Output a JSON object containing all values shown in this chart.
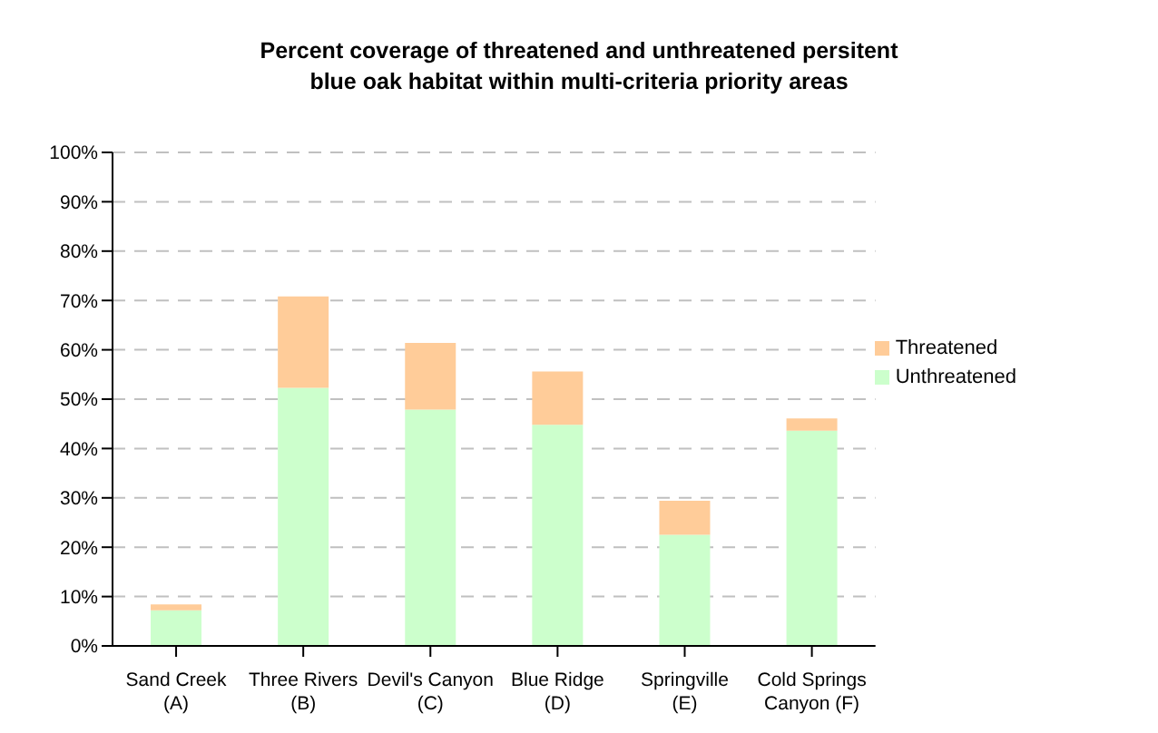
{
  "chart_data": {
    "type": "bar",
    "title": "Percent coverage of threatened and unthreatened persitent\nblue oak habitat within multi-criteria priority areas",
    "categories": [
      "Sand Creek\n(A)",
      "Three Rivers\n(B)",
      "Devil's Canyon\n(C)",
      "Blue Ridge\n(D)",
      "Springville\n(E)",
      "Cold Springs\nCanyon (F)"
    ],
    "stacked": true,
    "series": [
      {
        "name": "Unthreatened",
        "color": "#ccffcc",
        "values": [
          7.2,
          52.3,
          47.9,
          44.8,
          22.5,
          43.6
        ]
      },
      {
        "name": "Threatened",
        "color": "#ffcc99",
        "values": [
          1.2,
          18.5,
          13.5,
          10.8,
          6.9,
          2.5
        ]
      }
    ],
    "ylim": [
      0,
      100
    ],
    "yticks": [
      {
        "value": 0,
        "label": "0%"
      },
      {
        "value": 10,
        "label": "10%"
      },
      {
        "value": 20,
        "label": "20%"
      },
      {
        "value": 30,
        "label": "30%"
      },
      {
        "value": 40,
        "label": "40%"
      },
      {
        "value": 50,
        "label": "50%"
      },
      {
        "value": 60,
        "label": "60%"
      },
      {
        "value": 70,
        "label": "70%"
      },
      {
        "value": 80,
        "label": "80%"
      },
      {
        "value": 90,
        "label": "90%"
      },
      {
        "value": 100,
        "label": "100%"
      }
    ],
    "grid": "y",
    "legend": "right"
  }
}
